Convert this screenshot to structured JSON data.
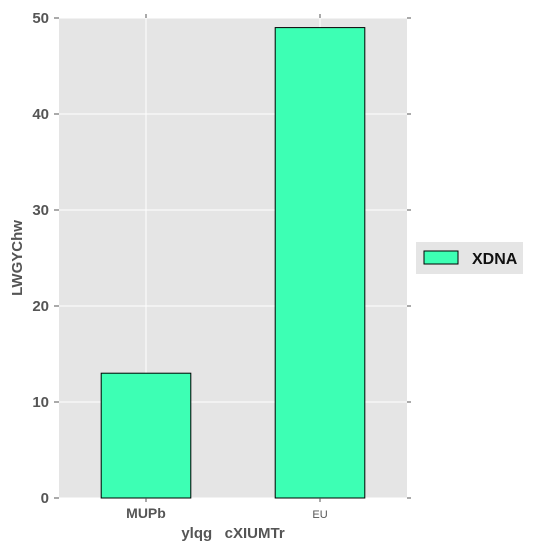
{
  "chart_data": {
    "type": "bar",
    "categories": [
      "MUPb",
      "EU"
    ],
    "series": [
      {
        "name": "XDNA",
        "values": [
          13,
          49
        ],
        "color": "#3dffb4"
      }
    ],
    "title": "",
    "xlabel": "ylqg   cXIUMTr",
    "ylabel": "LWGYChw",
    "ylim": [
      0,
      50
    ],
    "yticks": [
      0,
      10,
      20,
      30,
      40,
      50
    ],
    "grid": true,
    "legend_position": "right",
    "background_color": "#e5e5e5",
    "grid_color": "#ffffff"
  }
}
